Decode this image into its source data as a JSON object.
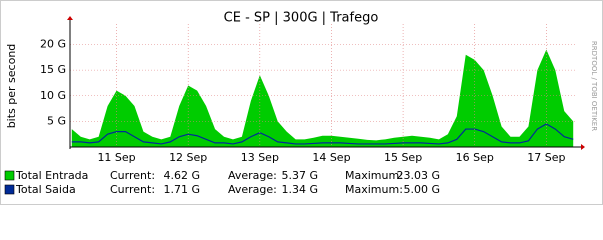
{
  "chart_data": {
    "type": "area",
    "title": "CE - SP | 300G | Trafego",
    "y_label": "bits per second",
    "watermark": "RRDTOOL / TOBI OETIKER",
    "x": [
      10.875,
      11.0,
      11.125,
      11.25,
      11.375,
      11.5,
      11.625,
      11.75,
      11.875,
      12.0,
      12.125,
      12.25,
      12.375,
      12.5,
      12.625,
      12.75,
      12.875,
      13.0,
      13.125,
      13.25,
      13.375,
      13.5,
      13.625,
      13.75,
      13.875,
      14.0,
      14.125,
      14.25,
      14.375,
      14.5,
      14.625,
      14.75,
      14.875,
      15.0,
      15.125,
      15.25,
      15.375,
      15.5,
      15.625,
      15.75,
      15.875,
      16.0,
      16.125,
      16.25,
      16.375,
      16.5,
      16.625,
      16.75,
      16.875,
      17.0,
      17.125,
      17.25,
      17.375,
      17.5,
      17.625,
      17.75,
      17.875
    ],
    "xlim": [
      10.85,
      17.9
    ],
    "xticks": [
      {
        "value": 11.5,
        "label": "11 Sep"
      },
      {
        "value": 12.5,
        "label": "12 Sep"
      },
      {
        "value": 13.5,
        "label": "13 Sep"
      },
      {
        "value": 14.5,
        "label": "14 Sep"
      },
      {
        "value": 15.5,
        "label": "15 Sep"
      },
      {
        "value": 16.5,
        "label": "16 Sep"
      },
      {
        "value": 17.5,
        "label": "17 Sep"
      }
    ],
    "ylim": [
      0,
      24
    ],
    "yticks": [
      {
        "value": 5,
        "label": "5 G"
      },
      {
        "value": 10,
        "label": "10 G"
      },
      {
        "value": 15,
        "label": "15 G"
      },
      {
        "value": 20,
        "label": "20 G"
      }
    ],
    "grid": true,
    "stat_labels": [
      "Current:",
      "Average:",
      "Maximum:"
    ],
    "series": [
      {
        "name": "Total Entrada",
        "color": "#00cc00",
        "kind": "area",
        "values": [
          3.5,
          2,
          1.5,
          2,
          8,
          11,
          10,
          8,
          3,
          2,
          1.5,
          2,
          8,
          12,
          11,
          8,
          3.5,
          2,
          1.5,
          2,
          9,
          14,
          10,
          5,
          3,
          1.5,
          1.5,
          1.8,
          2.2,
          2.2,
          2,
          1.8,
          1.6,
          1.4,
          1.3,
          1.5,
          1.8,
          2,
          2.2,
          2,
          1.8,
          1.5,
          2.5,
          6,
          18,
          17,
          15,
          10,
          4,
          2,
          2,
          4,
          15,
          19,
          15,
          7,
          5
        ],
        "stats": [
          {
            "value": 4.62,
            "label": "4.62 G"
          },
          {
            "value": 5.37,
            "label": "5.37 G"
          },
          {
            "value": 23.03,
            "label": "23.03 G"
          }
        ]
      },
      {
        "name": "Total Saida",
        "color": "#002a97",
        "kind": "line",
        "values": [
          1,
          1,
          0.8,
          1,
          2.5,
          3,
          3,
          2,
          1,
          0.8,
          0.6,
          1,
          2,
          2.5,
          2.2,
          1.5,
          0.8,
          0.8,
          0.6,
          1,
          2,
          2.8,
          2,
          1,
          0.8,
          0.6,
          0.6,
          0.7,
          0.8,
          0.8,
          0.8,
          0.7,
          0.6,
          0.6,
          0.6,
          0.6,
          0.7,
          0.8,
          0.8,
          0.8,
          0.7,
          0.6,
          0.8,
          1.5,
          3.5,
          3.5,
          3,
          2,
          1,
          0.8,
          0.8,
          1.2,
          3.5,
          4.5,
          3.5,
          2,
          1.5
        ],
        "stats": [
          {
            "value": 1.71,
            "label": "1.71 G"
          },
          {
            "value": 1.34,
            "label": "1.34 G"
          },
          {
            "value": 5.0,
            "label": "5.00 G"
          }
        ]
      }
    ]
  }
}
